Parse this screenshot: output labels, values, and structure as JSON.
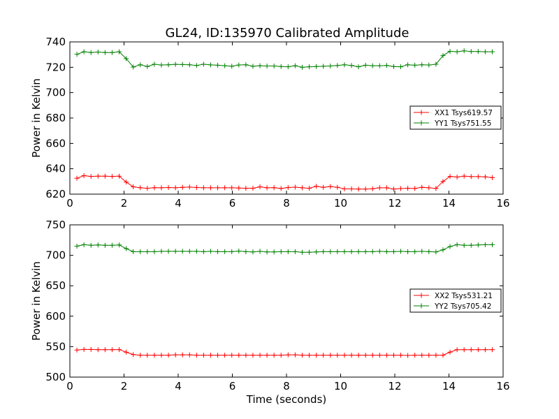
{
  "title": "GL24, ID:135970 Calibrated Amplitude",
  "chart_data": [
    {
      "type": "line",
      "xlabel": "",
      "ylabel": "Power in Kelvin",
      "xlim": [
        0,
        16
      ],
      "ylim": [
        620,
        740
      ],
      "xticks": [
        0,
        2,
        4,
        6,
        8,
        10,
        12,
        14,
        16
      ],
      "yticks": [
        620,
        640,
        660,
        680,
        700,
        720,
        740
      ],
      "grid": false,
      "legend_position": "right",
      "x": [
        0.26,
        0.52,
        0.78,
        1.04,
        1.3,
        1.56,
        1.82,
        2.08,
        2.34,
        2.6,
        2.86,
        3.12,
        3.38,
        3.64,
        3.9,
        4.16,
        4.42,
        4.68,
        4.94,
        5.2,
        5.46,
        5.72,
        5.98,
        6.24,
        6.5,
        6.76,
        7.02,
        7.28,
        7.54,
        7.8,
        8.06,
        8.32,
        8.58,
        8.84,
        9.1,
        9.36,
        9.62,
        9.88,
        10.14,
        10.4,
        10.66,
        10.92,
        11.18,
        11.44,
        11.7,
        11.96,
        12.22,
        12.48,
        12.74,
        13.0,
        13.26,
        13.52,
        13.78,
        14.04,
        14.3,
        14.56,
        14.82,
        15.08,
        15.34,
        15.6
      ],
      "series": [
        {
          "name": "XX1 Tsys619.57",
          "color": "#ff0000",
          "values": [
            632.5,
            634.6,
            634.0,
            634.2,
            634.2,
            634.0,
            634.2,
            629.5,
            625.8,
            625.1,
            624.6,
            625.1,
            625.0,
            625.2,
            625.0,
            625.4,
            625.6,
            625.2,
            625.0,
            625.0,
            625.0,
            625.0,
            625.0,
            624.8,
            624.6,
            624.6,
            625.8,
            625.0,
            625.1,
            624.5,
            625.2,
            625.5,
            625.0,
            624.6,
            626.2,
            625.4,
            626.0,
            625.4,
            624.1,
            624.1,
            624.0,
            624.0,
            624.2,
            625.0,
            625.0,
            624.0,
            624.4,
            624.6,
            624.5,
            625.4,
            625.0,
            624.5,
            630.0,
            634.0,
            633.5,
            634.2,
            633.8,
            633.8,
            633.6,
            633.0
          ]
        },
        {
          "name": "YY1 Tsys751.55",
          "color": "#008000",
          "values": [
            730.2,
            732.2,
            731.6,
            732.0,
            731.6,
            731.6,
            732.2,
            726.8,
            720.2,
            722.0,
            720.6,
            722.4,
            721.8,
            722.0,
            722.3,
            722.2,
            722.0,
            721.4,
            722.4,
            721.9,
            721.6,
            721.2,
            720.8,
            721.8,
            722.0,
            720.8,
            721.2,
            721.0,
            721.0,
            720.6,
            720.4,
            721.2,
            720.0,
            720.4,
            720.6,
            720.8,
            721.0,
            721.4,
            722.0,
            721.4,
            720.4,
            721.6,
            721.2,
            721.2,
            721.4,
            720.6,
            720.4,
            722.0,
            721.6,
            722.0,
            721.8,
            722.4,
            729.2,
            732.6,
            732.2,
            733.0,
            732.4,
            732.4,
            732.2,
            732.2
          ]
        }
      ]
    },
    {
      "type": "line",
      "xlabel": "Time (seconds)",
      "ylabel": "Power in Kelvin",
      "xlim": [
        0,
        16
      ],
      "ylim": [
        500,
        750
      ],
      "xticks": [
        0,
        2,
        4,
        6,
        8,
        10,
        12,
        14,
        16
      ],
      "yticks": [
        500,
        550,
        600,
        650,
        700,
        750
      ],
      "grid": false,
      "legend_position": "right",
      "x": [
        0.26,
        0.52,
        0.78,
        1.04,
        1.3,
        1.56,
        1.82,
        2.08,
        2.34,
        2.6,
        2.86,
        3.12,
        3.38,
        3.64,
        3.9,
        4.16,
        4.42,
        4.68,
        4.94,
        5.2,
        5.46,
        5.72,
        5.98,
        6.24,
        6.5,
        6.76,
        7.02,
        7.28,
        7.54,
        7.8,
        8.06,
        8.32,
        8.58,
        8.84,
        9.1,
        9.36,
        9.62,
        9.88,
        10.14,
        10.4,
        10.66,
        10.92,
        11.18,
        11.44,
        11.7,
        11.96,
        12.22,
        12.48,
        12.74,
        13.0,
        13.26,
        13.52,
        13.78,
        14.04,
        14.3,
        14.56,
        14.82,
        15.08,
        15.34,
        15.6
      ],
      "series": [
        {
          "name": "XX2 Tsys531.21",
          "color": "#ff0000",
          "values": [
            544.5,
            545.5,
            545.5,
            545.0,
            545.0,
            545.0,
            545.2,
            541.0,
            537.0,
            536.0,
            536.0,
            536.0,
            536.0,
            536.0,
            536.5,
            536.5,
            536.5,
            536.0,
            536.0,
            536.0,
            536.0,
            536.0,
            536.0,
            536.0,
            536.0,
            536.0,
            536.0,
            536.0,
            536.0,
            536.0,
            536.5,
            536.5,
            536.0,
            536.0,
            536.0,
            536.0,
            536.0,
            536.0,
            536.0,
            536.0,
            536.0,
            536.0,
            536.0,
            536.0,
            536.0,
            536.0,
            536.0,
            535.5,
            536.0,
            536.0,
            536.0,
            536.0,
            536.0,
            541.0,
            545.0,
            545.0,
            545.0,
            545.0,
            545.0,
            545.0
          ]
        },
        {
          "name": "YY2 Tsys705.42",
          "color": "#008000",
          "values": [
            715.0,
            717.5,
            716.5,
            717.0,
            716.5,
            716.5,
            717.0,
            711.0,
            706.0,
            706.0,
            706.0,
            706.0,
            706.5,
            706.5,
            706.5,
            706.5,
            706.5,
            706.5,
            706.0,
            706.5,
            706.0,
            706.0,
            706.0,
            707.0,
            706.0,
            705.5,
            706.5,
            705.5,
            705.5,
            706.0,
            706.0,
            706.0,
            705.0,
            705.0,
            705.5,
            706.0,
            706.0,
            706.0,
            706.0,
            706.0,
            706.0,
            706.0,
            706.0,
            706.5,
            706.0,
            706.0,
            706.5,
            706.0,
            706.0,
            706.5,
            706.0,
            705.5,
            709.0,
            714.5,
            717.5,
            716.5,
            716.5,
            717.0,
            717.5,
            717.5
          ]
        }
      ]
    }
  ]
}
